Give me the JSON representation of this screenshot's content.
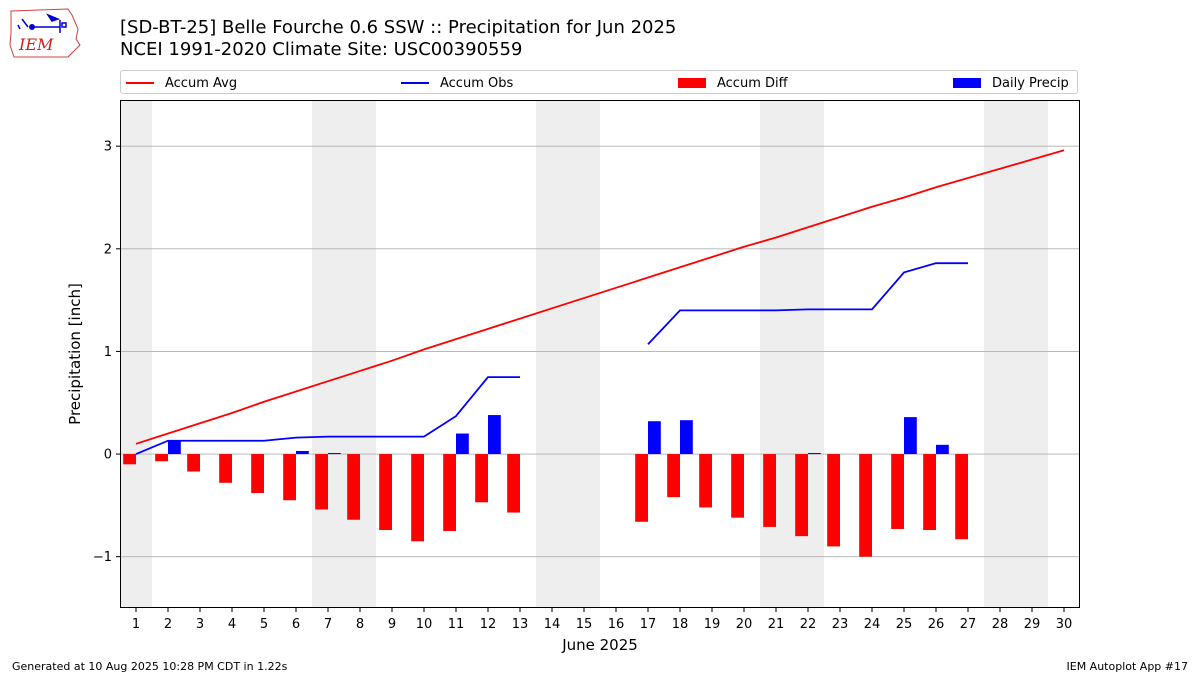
{
  "header": {
    "logo_text": "IEM",
    "title_line1": "[SD-BT-25] Belle Fourche 0.6 SSW :: Precipitation for Jun 2025",
    "title_line2": "NCEI 1991-2020 Climate Site: USC00390559"
  },
  "legend": {
    "accum_avg": "Accum Avg",
    "accum_obs": "Accum Obs",
    "accum_diff": "Accum Diff",
    "daily_precip": "Daily Precip"
  },
  "colors": {
    "accum_avg": "#ff0000",
    "accum_obs": "#0000ff",
    "accum_diff": "#ff0000",
    "daily_precip": "#0000ff",
    "weekend_shade": "#eeeeee",
    "grid": "#b0b0b0"
  },
  "chart_data": {
    "type": "bar",
    "xlabel": "June 2025",
    "ylabel": "Precipitation [inch]",
    "ylim": [
      -1.5,
      3.45
    ],
    "xlim": [
      0.5,
      30.5
    ],
    "yticks": [
      -1,
      0,
      1,
      2,
      3
    ],
    "ytick_labels": [
      "−1",
      "0",
      "1",
      "2",
      "3"
    ],
    "xticks": [
      1,
      2,
      3,
      4,
      5,
      6,
      7,
      8,
      9,
      10,
      11,
      12,
      13,
      14,
      15,
      16,
      17,
      18,
      19,
      20,
      21,
      22,
      23,
      24,
      25,
      26,
      27,
      28,
      29,
      30
    ],
    "grid": "horizontal",
    "legend_position": "top",
    "weekend_days": [
      1,
      7,
      8,
      14,
      15,
      21,
      22,
      28,
      29
    ],
    "series": [
      {
        "name": "Accum Avg",
        "kind": "line",
        "x": [
          1,
          2,
          3,
          4,
          5,
          6,
          7,
          8,
          9,
          10,
          11,
          12,
          13,
          14,
          15,
          16,
          17,
          18,
          19,
          20,
          21,
          22,
          23,
          24,
          25,
          26,
          27,
          28,
          29,
          30
        ],
        "values": [
          0.1,
          0.2,
          0.3,
          0.4,
          0.51,
          0.61,
          0.71,
          0.81,
          0.91,
          1.02,
          1.12,
          1.22,
          1.32,
          1.42,
          1.52,
          1.62,
          1.72,
          1.82,
          1.92,
          2.02,
          2.11,
          2.21,
          2.31,
          2.41,
          2.5,
          2.6,
          2.69,
          2.78,
          2.87,
          2.96
        ]
      },
      {
        "name": "Accum Obs",
        "kind": "line",
        "x": [
          1,
          2,
          3,
          4,
          5,
          6,
          7,
          8,
          9,
          10,
          11,
          12,
          13,
          14,
          15,
          16,
          17,
          18,
          19,
          20,
          21,
          22,
          23,
          24,
          25,
          26,
          27
        ],
        "values": [
          0.0,
          0.13,
          0.13,
          0.13,
          0.13,
          0.16,
          0.17,
          0.17,
          0.17,
          0.17,
          0.37,
          0.75,
          0.75,
          null,
          null,
          null,
          1.07,
          1.4,
          1.4,
          1.4,
          1.4,
          1.41,
          1.41,
          1.41,
          1.77,
          1.86,
          1.86
        ]
      },
      {
        "name": "Accum Diff",
        "kind": "bar",
        "x": [
          1,
          2,
          3,
          4,
          5,
          6,
          7,
          8,
          9,
          10,
          11,
          12,
          13,
          17,
          18,
          19,
          20,
          21,
          22,
          23,
          24,
          25,
          26,
          27
        ],
        "values": [
          -0.1,
          -0.07,
          -0.17,
          -0.28,
          -0.38,
          -0.45,
          -0.54,
          -0.64,
          -0.74,
          -0.85,
          -0.75,
          -0.47,
          -0.57,
          -0.66,
          -0.42,
          -0.52,
          -0.62,
          -0.71,
          -0.8,
          -0.9,
          -1.0,
          -0.73,
          -0.74,
          -0.83
        ]
      },
      {
        "name": "Daily Precip",
        "kind": "bar",
        "x": [
          2,
          6,
          7,
          11,
          12,
          17,
          18,
          22,
          25,
          26
        ],
        "values": [
          0.13,
          0.03,
          0.01,
          0.2,
          0.38,
          0.32,
          0.33,
          0.01,
          0.36,
          0.09
        ]
      }
    ]
  },
  "footer": {
    "generated": "Generated at 10 Aug 2025 10:28 PM CDT in 1.22s",
    "app": "IEM Autoplot App #17"
  }
}
